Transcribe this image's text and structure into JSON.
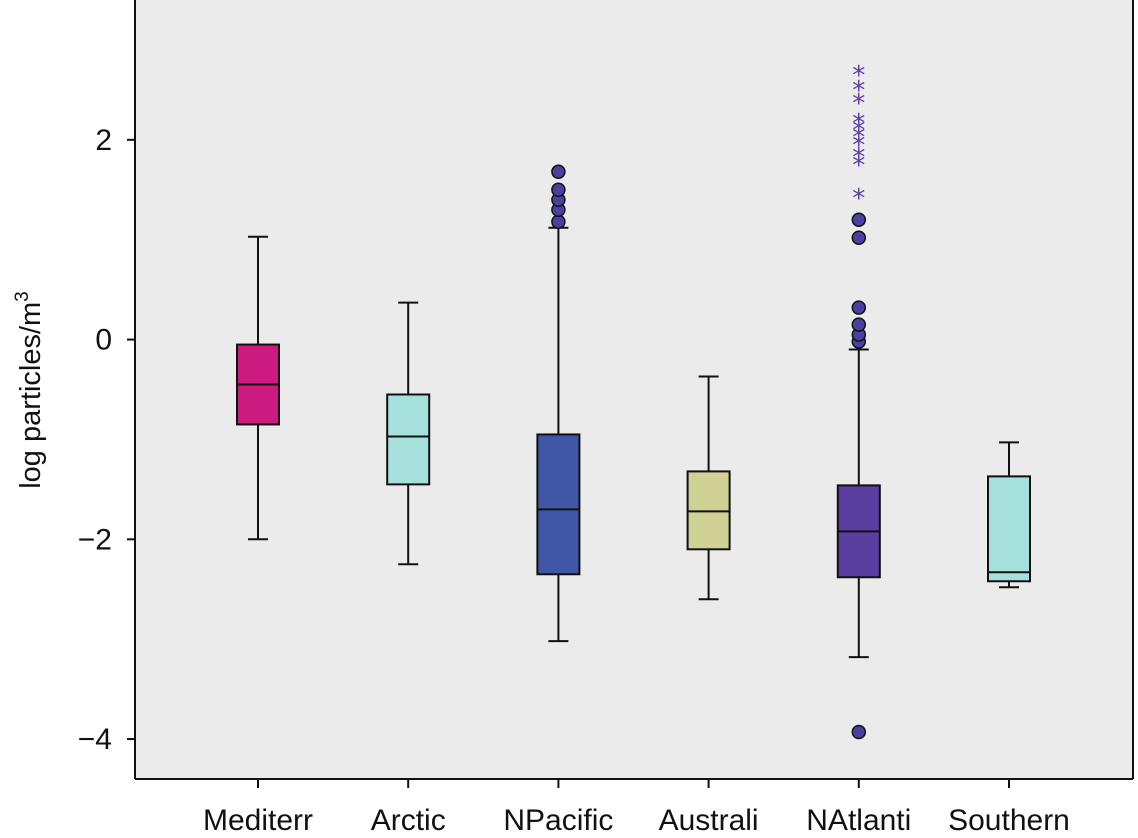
{
  "chart_data": {
    "type": "boxplot",
    "title": "",
    "xlabel": "",
    "ylabel": "log particles/m",
    "ylabel_superscript": "3",
    "ylim": [
      -4.4,
      3.4
    ],
    "yticks": [
      {
        "value": 2,
        "label": "2"
      },
      {
        "value": 0,
        "label": "0"
      },
      {
        "value": -2,
        "label": "−2"
      },
      {
        "value": -4,
        "label": "−4"
      }
    ],
    "grid": false,
    "legend": "none",
    "background": "#ebebeb",
    "categories": [
      "Mediterr",
      "Arctic",
      "NPacific",
      "Australi",
      "NAtlanti",
      "Southern"
    ],
    "boxes": [
      {
        "category": "Mediterr",
        "color": "#cc1a80",
        "whisker_low": -2.0,
        "q1": -0.85,
        "median": -0.45,
        "q3": -0.05,
        "whisker_high": 1.03,
        "outliers": [],
        "extremes": []
      },
      {
        "category": "Arctic",
        "color": "#a6e0dc",
        "whisker_low": -2.25,
        "q1": -1.45,
        "median": -0.97,
        "q3": -0.55,
        "whisker_high": 0.37,
        "outliers": [],
        "extremes": []
      },
      {
        "category": "NPacific",
        "color": "#3f57a6",
        "whisker_low": -3.02,
        "q1": -2.35,
        "median": -1.7,
        "q3": -0.95,
        "whisker_high": 1.12,
        "outliers": [
          1.18,
          1.3,
          1.4,
          1.5,
          1.68
        ],
        "extremes": []
      },
      {
        "category": "Australi",
        "color": "#cfd195",
        "whisker_low": -2.6,
        "q1": -2.1,
        "median": -1.72,
        "q3": -1.32,
        "whisker_high": -0.37,
        "outliers": [],
        "extremes": []
      },
      {
        "category": "NAtlanti",
        "color": "#5a3fa1",
        "whisker_low": -3.18,
        "q1": -2.38,
        "median": -1.92,
        "q3": -1.46,
        "whisker_high": -0.1,
        "outliers": [
          -3.93,
          -0.02,
          0.05,
          0.15,
          0.32,
          1.02,
          1.2
        ],
        "extremes": [
          1.47,
          1.8,
          1.88,
          2.0,
          2.08,
          2.15,
          2.22,
          2.42,
          2.55,
          2.7
        ]
      },
      {
        "category": "Southern",
        "color": "#a6e0dc",
        "whisker_low": -2.48,
        "q1": -2.42,
        "median": -2.33,
        "q3": -1.37,
        "whisker_high": -1.03,
        "outliers": [],
        "extremes": []
      }
    ],
    "outlier_color": "#4b3fa1",
    "extreme_color": "#5a3fa1"
  }
}
